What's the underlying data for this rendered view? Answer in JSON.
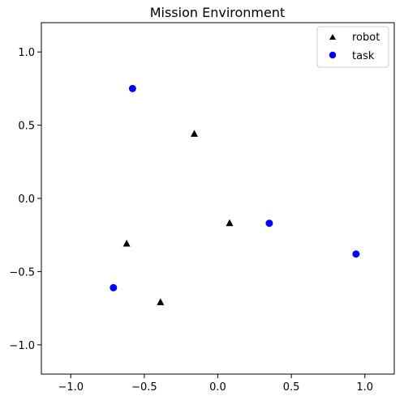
{
  "chart_data": {
    "type": "scatter",
    "title": "Mission Environment",
    "xlabel": "",
    "ylabel": "",
    "xlim": [
      -1.2,
      1.2
    ],
    "ylim": [
      -1.2,
      1.2
    ],
    "xticks": [
      -1.0,
      -0.5,
      0.0,
      0.5,
      1.0
    ],
    "xtick_labels": [
      "−1.0",
      "−0.5",
      "0.0",
      "0.5",
      "1.0"
    ],
    "yticks": [
      -1.0,
      -0.5,
      0.0,
      0.5,
      1.0
    ],
    "ytick_labels": [
      "−1.0",
      "−0.5",
      "0.0",
      "0.5",
      "1.0"
    ],
    "grid": false,
    "legend_position": "top-right",
    "series": [
      {
        "name": "robot",
        "marker": "triangle",
        "color": "#000000",
        "points": [
          {
            "x": -0.16,
            "y": 0.44
          },
          {
            "x": 0.08,
            "y": -0.17
          },
          {
            "x": -0.62,
            "y": -0.31
          },
          {
            "x": -0.39,
            "y": -0.71
          }
        ]
      },
      {
        "name": "task",
        "marker": "circle",
        "color": "#0000ff",
        "points": [
          {
            "x": -0.58,
            "y": 0.75
          },
          {
            "x": 0.35,
            "y": -0.17
          },
          {
            "x": 0.94,
            "y": -0.38
          },
          {
            "x": -0.71,
            "y": -0.61
          }
        ]
      }
    ]
  }
}
